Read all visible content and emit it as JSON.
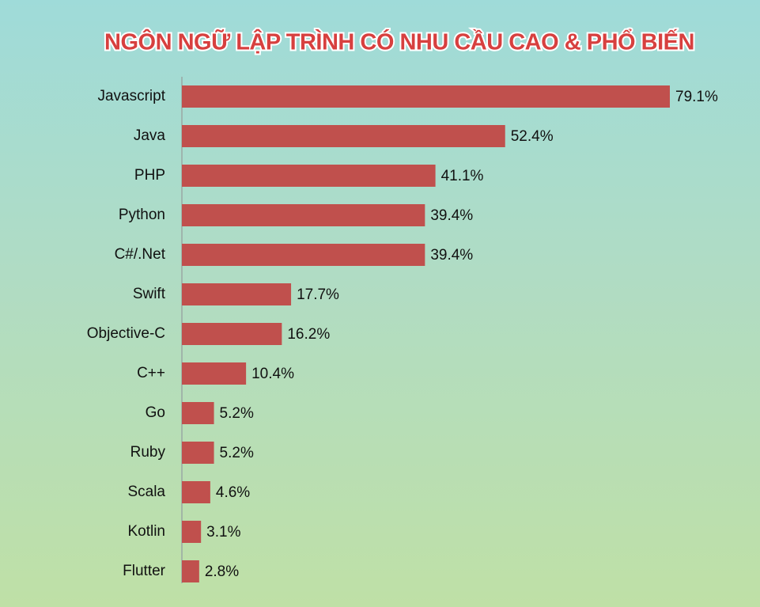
{
  "chart_data": {
    "type": "bar",
    "orientation": "horizontal",
    "title": "NGÔN NGỮ LẬP TRÌNH CÓ NHU CẦU CAO & PHỔ BIẾN",
    "categories": [
      "Javascript",
      "Java",
      "PHP",
      "Python",
      "C#/.Net",
      "Swift",
      "Objective-C",
      "C++",
      "Go",
      "Ruby",
      "Scala",
      "Kotlin",
      "Flutter"
    ],
    "values": [
      79.1,
      52.4,
      41.1,
      39.4,
      39.4,
      17.7,
      16.2,
      10.4,
      5.2,
      5.2,
      4.6,
      3.1,
      2.8
    ],
    "value_labels": [
      "79.1%",
      "52.4%",
      "41.1%",
      "39.4%",
      "39.4%",
      "17.7%",
      "16.2%",
      "10.4%",
      "5.2%",
      "5.2%",
      "4.6%",
      "3.1%",
      "2.8%"
    ],
    "color": "#c0504d"
  }
}
